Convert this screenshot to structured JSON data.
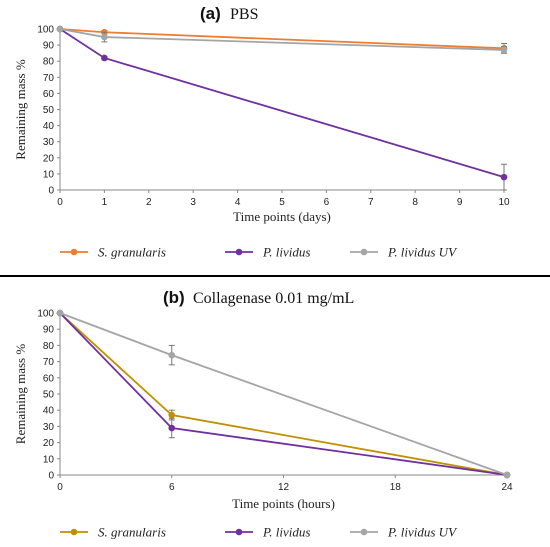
{
  "chart_data": [
    {
      "type": "line",
      "panel": "(a)",
      "title": "PBS",
      "xlabel": "Time points (days)",
      "ylabel": "Remaining mass %",
      "x": [
        0,
        1,
        10
      ],
      "xticks": [
        0,
        1,
        2,
        3,
        4,
        5,
        6,
        7,
        8,
        9,
        10
      ],
      "xlim": [
        0,
        10
      ],
      "ylim": [
        0,
        100
      ],
      "yticks": [
        0,
        10,
        20,
        30,
        40,
        50,
        60,
        70,
        80,
        90,
        100
      ],
      "grid": false,
      "legend_position": "bottom",
      "series": [
        {
          "name": "S. granularis",
          "color": "#ed7d31",
          "values": [
            100,
            98,
            88
          ],
          "errors": [
            0,
            1,
            3
          ]
        },
        {
          "name": "P. lividus",
          "color": "#7030a0",
          "values": [
            100,
            82,
            8
          ],
          "errors": [
            0,
            1,
            8
          ]
        },
        {
          "name": "P. lividus UV",
          "color": "#a5a5a5",
          "values": [
            100,
            95,
            87
          ],
          "errors": [
            0,
            3,
            2
          ]
        }
      ]
    },
    {
      "type": "line",
      "panel": "(b)",
      "title": "Collagenase 0.01 mg/mL",
      "xlabel": "Time points (hours)",
      "ylabel": "Remaining mass %",
      "x": [
        0,
        6,
        24
      ],
      "xticks": [
        0,
        6,
        12,
        18,
        24
      ],
      "xlim": [
        0,
        24
      ],
      "ylim": [
        0,
        100
      ],
      "yticks": [
        0,
        10,
        20,
        30,
        40,
        50,
        60,
        70,
        80,
        90,
        100
      ],
      "grid": false,
      "legend_position": "bottom",
      "series": [
        {
          "name": "S. granularis",
          "color": "#bf9000",
          "values": [
            100,
            37,
            0
          ],
          "errors": [
            0,
            3,
            0
          ]
        },
        {
          "name": "P. lividus",
          "color": "#7030a0",
          "values": [
            100,
            29,
            0
          ],
          "errors": [
            0,
            6,
            0
          ]
        },
        {
          "name": "P. lividus UV",
          "color": "#a5a5a5",
          "values": [
            100,
            74,
            0
          ],
          "errors": [
            0,
            6,
            0
          ]
        }
      ]
    }
  ]
}
